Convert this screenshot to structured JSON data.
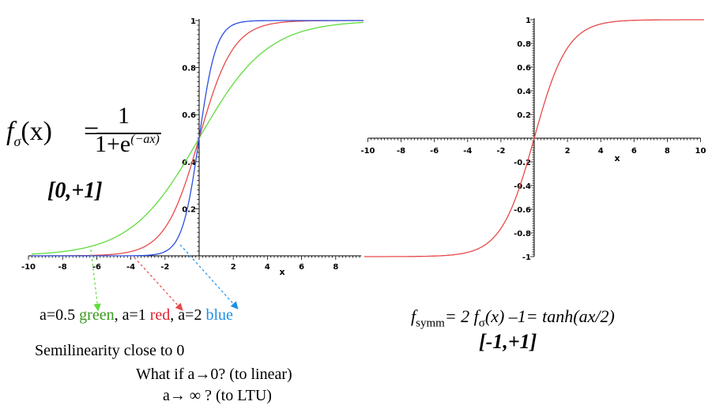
{
  "chart_data": [
    {
      "type": "line",
      "title": "",
      "xlabel": "x",
      "ylabel": "",
      "xlim": [
        -10,
        9.5
      ],
      "ylim": [
        0,
        1
      ],
      "x_ticks": [
        "-10",
        "-8",
        "-6",
        "-4",
        "-2",
        "2",
        "4",
        "6",
        "8"
      ],
      "y_ticks": [
        "0.2",
        "0.4",
        "0.6",
        "0.8",
        "1"
      ],
      "grid": false,
      "function": "1/(1+exp(-a*x))",
      "series": [
        {
          "a": 0.5,
          "color": "#5fdc3c"
        },
        {
          "a": 1,
          "color": "#e64a4a"
        },
        {
          "a": 2,
          "color": "#2a4fe0"
        }
      ]
    },
    {
      "type": "line",
      "title": "",
      "xlabel": "x",
      "ylabel": "",
      "xlim": [
        -10,
        10
      ],
      "ylim": [
        -1,
        1
      ],
      "x_ticks": [
        "-10",
        "-8",
        "-6",
        "-4",
        "-2",
        "2",
        "4",
        "6",
        "8",
        "10"
      ],
      "y_ticks": [
        "-1",
        "-0.8",
        "-0.6",
        "-0.4",
        "-0.2",
        "0.2",
        "0.4",
        "0.6",
        "0.8",
        "1"
      ],
      "grid": false,
      "function": "tanh(x/2)",
      "series": [
        {
          "a": 1,
          "color": "#e64a4a"
        }
      ]
    }
  ],
  "formula": {
    "lhs": "f",
    "sub": "σ",
    "arg": "(x)",
    "eq": "=",
    "numerator": "1",
    "denominator": "1+e",
    "exponent": "(−ax)"
  },
  "range1": "[0,+1]",
  "legend": {
    "green_prefix": "a=0.5 ",
    "green_word": "green",
    "red_prefix": ", a=1 ",
    "red_word": "red",
    "blue_prefix": ", a=2 ",
    "blue_word": "blue"
  },
  "semilinearity": "Semilinearity close to 0",
  "question1": "What if a→0? (to linear)",
  "question2": "a→ ∞ ? (to LTU)",
  "symm": {
    "f": "f",
    "sub": "symm",
    "rest": "= 2 f",
    "sub2": "σ",
    "rest2": "(x) –1= tanh(ax/2)"
  },
  "range2": "[-1,+1]",
  "colors": {
    "legend_green": "#3a9a1c",
    "legend_red": "#e0222c",
    "legend_blue": "#1a8fe6"
  }
}
